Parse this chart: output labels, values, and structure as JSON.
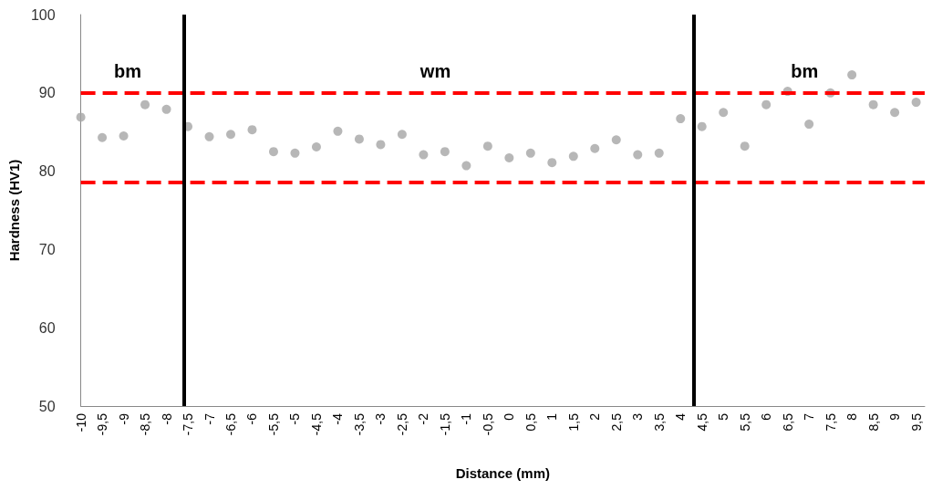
{
  "chart_data": {
    "type": "scatter",
    "xlabel": "Distance (mm)",
    "ylabel": "Hardness (HV1)",
    "x": [
      -10,
      -9.5,
      -9,
      -8.5,
      -8,
      -7.5,
      -7,
      -6.5,
      -6,
      -5.5,
      -5,
      -4.5,
      -4,
      -3.5,
      -3,
      -2.5,
      -2,
      -1.5,
      -1,
      -0.5,
      0,
      0.5,
      1,
      1.5,
      2,
      2.5,
      3,
      3.5,
      4,
      4.5,
      5,
      5.5,
      6,
      6.5,
      7,
      7.5,
      8,
      8.5,
      9,
      9.5
    ],
    "values": [
      86.9,
      84.3,
      84.5,
      88.5,
      87.9,
      85.7,
      84.4,
      84.7,
      85.3,
      82.5,
      82.3,
      83.1,
      85.1,
      84.1,
      83.4,
      84.7,
      82.1,
      82.5,
      80.7,
      83.2,
      81.7,
      82.3,
      81.1,
      81.9,
      82.9,
      84.0,
      82.1,
      82.3,
      86.7,
      85.7,
      87.5,
      83.2,
      88.5,
      90.2,
      86.0,
      90.0,
      92.3,
      88.5,
      87.5,
      88.8
    ],
    "color": "#a5a5a5",
    "marker": "circle",
    "grid": false,
    "xlim": [
      -10,
      9.7
    ],
    "xticks": [
      {
        "value": -10,
        "label": "-10"
      },
      {
        "value": -9.5,
        "label": "-9,5"
      },
      {
        "value": -9,
        "label": "-9"
      },
      {
        "value": -8.5,
        "label": "-8,5"
      },
      {
        "value": -8,
        "label": "-8"
      },
      {
        "value": -7.5,
        "label": "-7,5"
      },
      {
        "value": -7,
        "label": "-7"
      },
      {
        "value": -6.5,
        "label": "-6,5"
      },
      {
        "value": -6,
        "label": "-6"
      },
      {
        "value": -5.5,
        "label": "-5,5"
      },
      {
        "value": -5,
        "label": "-5"
      },
      {
        "value": -4.5,
        "label": "-4,5"
      },
      {
        "value": -4,
        "label": "-4"
      },
      {
        "value": -3.5,
        "label": "-3,5"
      },
      {
        "value": -3,
        "label": "-3"
      },
      {
        "value": -2.5,
        "label": "-2,5"
      },
      {
        "value": -2,
        "label": "-2"
      },
      {
        "value": -1.5,
        "label": "-1,5"
      },
      {
        "value": -1,
        "label": "-1"
      },
      {
        "value": -0.5,
        "label": "-0,5"
      },
      {
        "value": 0,
        "label": "0"
      },
      {
        "value": 0.5,
        "label": "0,5"
      },
      {
        "value": 1,
        "label": "1"
      },
      {
        "value": 1.5,
        "label": "1,5"
      },
      {
        "value": 2,
        "label": "2"
      },
      {
        "value": 2.5,
        "label": "2,5"
      },
      {
        "value": 3,
        "label": "3"
      },
      {
        "value": 3.5,
        "label": "3,5"
      },
      {
        "value": 4,
        "label": "4"
      },
      {
        "value": 4.5,
        "label": "4,5"
      },
      {
        "value": 5,
        "label": "5"
      },
      {
        "value": 5.5,
        "label": "5,5"
      },
      {
        "value": 6,
        "label": "6"
      },
      {
        "value": 6.5,
        "label": "6,5"
      },
      {
        "value": 7,
        "label": "7"
      },
      {
        "value": 7.5,
        "label": "7,5"
      },
      {
        "value": 8,
        "label": "8"
      },
      {
        "value": 8.5,
        "label": "8,5"
      },
      {
        "value": 9,
        "label": "9"
      },
      {
        "value": 9.5,
        "label": "9,5"
      }
    ],
    "ylim": [
      50,
      100
    ],
    "yticks": [
      50,
      60,
      70,
      80,
      90,
      100
    ],
    "ref_lines": [
      {
        "axis": "y",
        "value": 90,
        "label": null,
        "color": "#ff0000",
        "line_style": "dashed"
      },
      {
        "axis": "y",
        "value": 78.6,
        "label": null,
        "color": "#ff0000",
        "line_style": "dashed"
      },
      {
        "axis": "x",
        "value": -7.6,
        "label": null,
        "color": "#000000",
        "line_style": "solid"
      },
      {
        "axis": "x",
        "value": 4.3,
        "label": null,
        "color": "#000000",
        "line_style": "solid"
      }
    ],
    "annotations": [
      "bm",
      "wm",
      "bm"
    ]
  }
}
